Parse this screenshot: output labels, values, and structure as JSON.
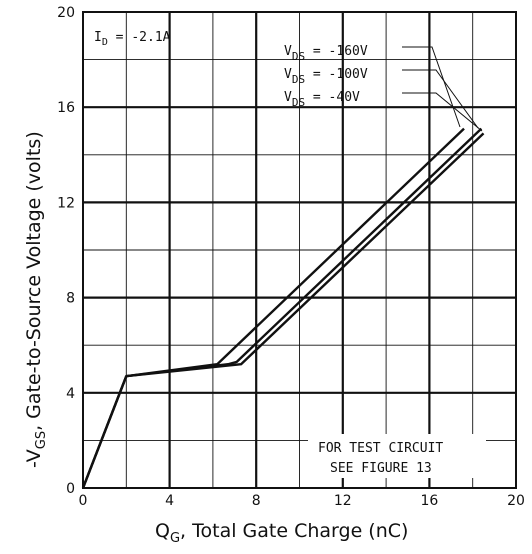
{
  "chart_data": {
    "type": "line",
    "title": "",
    "xlabel": "Q",
    "xlabel_sub": "G",
    "xlabel_rest": ", Total Gate Charge (nC)",
    "ylabel_pre": "-V",
    "ylabel_sub": "GS",
    "ylabel_rest": ", Gate-to-Source Voltage (volts)",
    "xlim": [
      0,
      20
    ],
    "ylim": [
      0,
      20
    ],
    "x_ticks": [
      0,
      4,
      8,
      12,
      16,
      20
    ],
    "y_ticks": [
      0,
      4,
      8,
      12,
      16,
      20
    ],
    "grid": true,
    "annotations": {
      "id_label_pre": "I",
      "id_label_sub": "D",
      "id_label_rest": " = -2.1A",
      "test_line1": "FOR TEST CIRCUIT",
      "test_line2": "SEE FIGURE 13"
    },
    "series": [
      {
        "label_pre": "V",
        "label_sub": "DS",
        "label_rest": " = -160V",
        "x": [
          0,
          2.0,
          6.2,
          17.6
        ],
        "y": [
          0,
          4.7,
          5.2,
          15.1
        ]
      },
      {
        "label_pre": "V",
        "label_sub": "DS",
        "label_rest": " = -100V",
        "x": [
          0,
          2.0,
          6.7,
          7.1,
          18.4
        ],
        "y": [
          0,
          4.7,
          5.2,
          5.3,
          15.1
        ]
      },
      {
        "label_pre": "V",
        "label_sub": "DS",
        "label_rest": " =  -40V",
        "x": [
          0,
          2.0,
          7.3,
          18.5
        ],
        "y": [
          0,
          4.7,
          5.2,
          14.9
        ]
      }
    ]
  }
}
